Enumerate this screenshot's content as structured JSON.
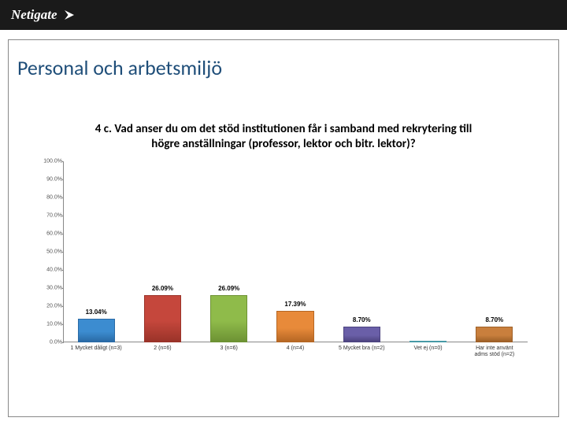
{
  "header": {
    "logo_text": "Netigate"
  },
  "section_title": "Personal och arbetsmiljö",
  "chart": {
    "type": "bar",
    "title": "4 c. Vad anser du om det stöd institutionen får i samband med rekrytering till högre anställningar (professor, lektor och bitr. lektor)?",
    "ylim": [
      0,
      100
    ],
    "ytick_step": 10,
    "y_suffix": ".0%",
    "yticks": [
      {
        "v": 0,
        "label": "0.0%"
      },
      {
        "v": 10,
        "label": "10.0%"
      },
      {
        "v": 20,
        "label": "20.0%"
      },
      {
        "v": 30,
        "label": "30.0%"
      },
      {
        "v": 40,
        "label": "40.0%"
      },
      {
        "v": 50,
        "label": "50.0%"
      },
      {
        "v": 60,
        "label": "60.0%"
      },
      {
        "v": 70,
        "label": "70.0%"
      },
      {
        "v": 80,
        "label": "80.0%"
      },
      {
        "v": 90,
        "label": "90.0%"
      },
      {
        "v": 100,
        "label": "100.0%"
      }
    ],
    "bars": [
      {
        "label": "1 Mycket dåligt (n=3)",
        "value": 13.04,
        "value_label": "13.04%",
        "fill": "#3c8cd0",
        "stroke": "#2a6aa5"
      },
      {
        "label": "2 (n=6)",
        "value": 26.09,
        "value_label": "26.09%",
        "fill": "#c5473c",
        "stroke": "#9a3329"
      },
      {
        "label": "3 (n=6)",
        "value": 26.09,
        "value_label": "26.09%",
        "fill": "#8fbb4a",
        "stroke": "#6d9234"
      },
      {
        "label": "4 (n=4)",
        "value": 17.39,
        "value_label": "17.39%",
        "fill": "#e88a3a",
        "stroke": "#b56724"
      },
      {
        "label": "5 Mycket bra (n=2)",
        "value": 8.7,
        "value_label": "8.70%",
        "fill": "#6a5fa8",
        "stroke": "#4d4480"
      },
      {
        "label": "Vet ej (n=0)",
        "value": 0,
        "value_label": "",
        "fill": "#60bbc9",
        "stroke": "#4799a6"
      },
      {
        "label": "Har inte använt\nadms stöd (n=2)",
        "value": 8.7,
        "value_label": "8.70%",
        "fill": "#c97f3d",
        "stroke": "#9e6028"
      }
    ],
    "axis_color": "#888888",
    "background_color": "#ffffff",
    "title_fontsize": 15,
    "label_fontsize": 7,
    "valuelabel_fontsize": 8,
    "bar_width": 0.56
  }
}
